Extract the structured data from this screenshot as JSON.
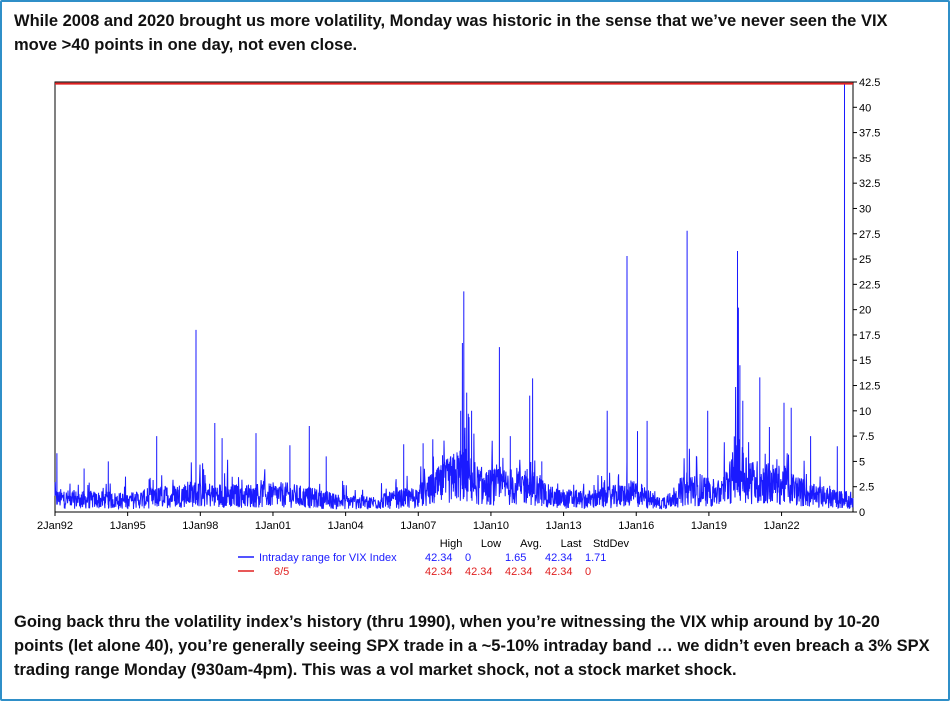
{
  "intro_text": "While 2008 and 2020 brought us more volatility, Monday was historic in the sense that we’ve never seen the VIX move >40 points in one day, not even close.",
  "outro_text": "Going back thru the volatility index’s history (thru 1990), when you’re witnessing the VIX whip around by 10-20 points (let alone 40), you’re generally seeing SPX trade in a ~5-10% intraday band … we didn’t even breach a 3% SPX trading range Monday (930am-4pm). This was a vol market shock, not a stock market shock.",
  "colors": {
    "series": "#1a1aff",
    "hline": "#e02020",
    "axis": "#000000",
    "border": "#2f8fc8"
  },
  "chart_data": {
    "type": "line",
    "ylim": [
      0,
      42.5
    ],
    "y_ticks": [
      "0",
      "2.5",
      "5",
      "7.5",
      "10",
      "12.5",
      "15",
      "17.5",
      "20",
      "22.5",
      "25",
      "27.5",
      "30",
      "32.5",
      "35",
      "37.5",
      "40",
      "42.5"
    ],
    "x_range": [
      1992.0,
      2024.95
    ],
    "x_ticks": [
      {
        "label": "2Jan92",
        "year": 1992.0
      },
      {
        "label": "1Jan95",
        "year": 1995.0
      },
      {
        "label": "1Jan98",
        "year": 1998.0
      },
      {
        "label": "1Jan01",
        "year": 2001.0
      },
      {
        "label": "1Jan04",
        "year": 2004.0
      },
      {
        "label": "1Jan07",
        "year": 2007.0
      },
      {
        "label": "1Jan10",
        "year": 2010.0
      },
      {
        "label": "1Jan13",
        "year": 2013.0
      },
      {
        "label": "1Jan16",
        "year": 2016.0
      },
      {
        "label": "1Jan19",
        "year": 2019.0
      },
      {
        "label": "1Jan22",
        "year": 2022.0
      }
    ],
    "series": [
      {
        "name": "Intraday range for VIX Index",
        "baseline": [
          [
            1992.0,
            1.3
          ],
          [
            1995.0,
            1.1
          ],
          [
            1997.7,
            1.8
          ],
          [
            1999.5,
            1.6
          ],
          [
            2001.5,
            1.7
          ],
          [
            2003.5,
            1.1
          ],
          [
            2005.0,
            0.9
          ],
          [
            2007.0,
            1.5
          ],
          [
            2008.8,
            3.8
          ],
          [
            2009.6,
            2.4
          ],
          [
            2011.6,
            2.6
          ],
          [
            2012.5,
            1.4
          ],
          [
            2014.0,
            1.2
          ],
          [
            2016.0,
            1.8
          ],
          [
            2017.0,
            0.8
          ],
          [
            2018.2,
            2.4
          ],
          [
            2019.5,
            1.8
          ],
          [
            2020.2,
            4.2
          ],
          [
            2020.8,
            3.0
          ],
          [
            2022.2,
            2.6
          ],
          [
            2023.2,
            1.6
          ],
          [
            2024.5,
            1.2
          ]
        ],
        "spikes": [
          [
            1992.08,
            5.8
          ],
          [
            1993.2,
            4.3
          ],
          [
            1994.2,
            5.0
          ],
          [
            1996.2,
            7.5
          ],
          [
            1997.82,
            18.0
          ],
          [
            1998.6,
            8.8
          ],
          [
            1998.9,
            7.3
          ],
          [
            2000.3,
            7.8
          ],
          [
            2001.7,
            6.6
          ],
          [
            2002.5,
            8.5
          ],
          [
            2003.2,
            5.5
          ],
          [
            2006.4,
            6.7
          ],
          [
            2007.2,
            6.8
          ],
          [
            2007.6,
            7.2
          ],
          [
            2008.0,
            5.6
          ],
          [
            2008.45,
            4.8
          ],
          [
            2008.75,
            10.0
          ],
          [
            2008.82,
            16.7
          ],
          [
            2008.88,
            21.8
          ],
          [
            2009.0,
            11.8
          ],
          [
            2009.2,
            10.0
          ],
          [
            2010.35,
            16.3
          ],
          [
            2010.8,
            7.5
          ],
          [
            2011.6,
            11.5
          ],
          [
            2011.72,
            13.2
          ],
          [
            2012.1,
            5.0
          ],
          [
            2014.8,
            10.0
          ],
          [
            2015.62,
            25.3
          ],
          [
            2016.05,
            8.0
          ],
          [
            2016.45,
            9.0
          ],
          [
            2018.1,
            27.8
          ],
          [
            2018.95,
            10.0
          ],
          [
            2020.05,
            4.5
          ],
          [
            2020.18,
            25.8
          ],
          [
            2020.22,
            20.2
          ],
          [
            2020.28,
            14.5
          ],
          [
            2020.4,
            11.0
          ],
          [
            2021.1,
            13.3
          ],
          [
            2021.5,
            8.4
          ],
          [
            2022.1,
            10.8
          ],
          [
            2022.4,
            10.3
          ],
          [
            2023.2,
            7.5
          ],
          [
            2024.3,
            6.5
          ],
          [
            2024.6,
            42.34
          ]
        ]
      }
    ],
    "hline": {
      "name": "8/5",
      "value": 42.34
    },
    "stats_headers": [
      "High",
      "Low",
      "Avg.",
      "Last",
      "StdDev"
    ],
    "stats": [
      {
        "name": "Intraday range for VIX Index",
        "values": [
          "42.34",
          "0",
          "1.65",
          "42.34",
          "1.71"
        ]
      },
      {
        "name": "8/5",
        "values": [
          "42.34",
          "42.34",
          "42.34",
          "42.34",
          "0"
        ]
      }
    ]
  }
}
